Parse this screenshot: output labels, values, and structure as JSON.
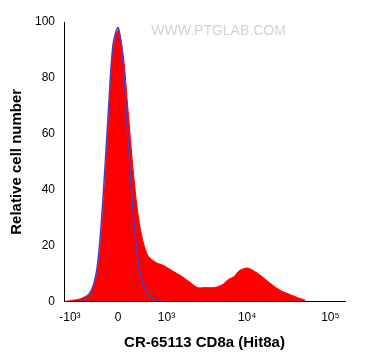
{
  "chart_data": {
    "type": "line",
    "x_label": "CR-65113 CD8a (Hit8a)",
    "y_label": "Relative cell number",
    "annotations": [
      "WWW.PTGLAB.COM"
    ],
    "x": [
      -1200,
      -900,
      -700,
      -500,
      -350,
      -250,
      -150,
      -80,
      0,
      80,
      150,
      250,
      350,
      500,
      700,
      900,
      1200,
      1600,
      2000,
      2500,
      3000,
      4000,
      5000,
      6000,
      7000,
      8000,
      10000,
      12000,
      15000,
      20000,
      25000,
      30000,
      40000,
      50000
    ],
    "series": [
      {
        "type": "area",
        "color": "#ff0000",
        "values": [
          0,
          0.5,
          1,
          3,
          10,
          30,
          65,
          90,
          97,
          88,
          70,
          45,
          28,
          17,
          14,
          13,
          11,
          9,
          7,
          5,
          5,
          5,
          6,
          8,
          9,
          11,
          12,
          11,
          9,
          6,
          4,
          3,
          1.5,
          0.5
        ]
      },
      {
        "type": "line",
        "color": "#4a3fc4",
        "values": [
          null,
          null,
          0,
          2,
          12,
          35,
          70,
          92,
          98,
          85,
          60,
          30,
          12,
          3,
          0.5,
          0,
          null,
          null,
          null,
          null,
          null,
          null,
          null,
          null,
          null,
          null,
          null,
          null,
          null,
          null,
          null,
          null,
          null,
          null
        ]
      }
    ],
    "xlim": [
      -1200,
      150000
    ],
    "xticks": [
      {
        "value": -1000,
        "label": "-10³"
      },
      0,
      {
        "value": 1000,
        "label": "10³"
      },
      {
        "value": 10000,
        "label": "10⁴"
      },
      {
        "value": 100000,
        "label": "10⁵"
      }
    ],
    "ylim": [
      0,
      100
    ],
    "yticks": [
      0,
      20,
      40,
      60,
      80,
      100
    ],
    "grid": false
  }
}
